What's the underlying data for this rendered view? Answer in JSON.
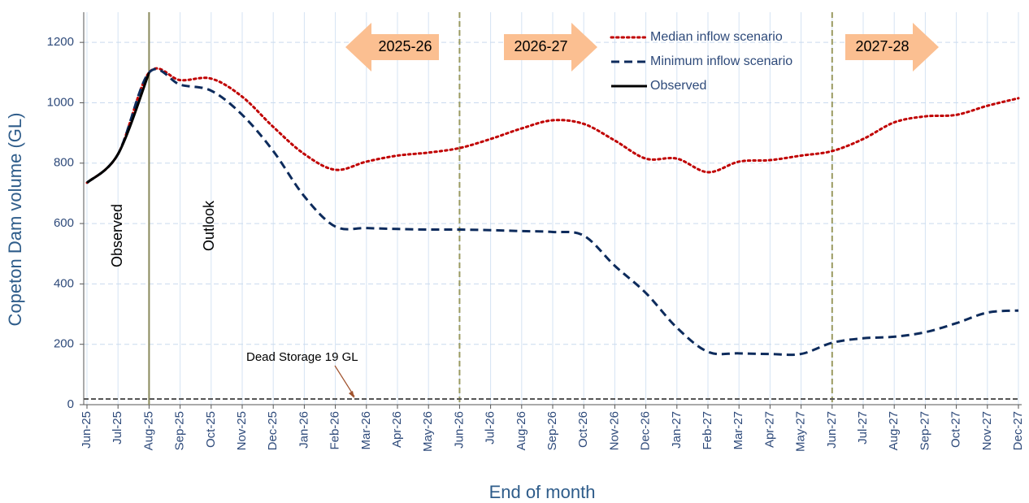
{
  "chart_data": {
    "type": "line",
    "xlabel": "End of month",
    "ylabel": "Copeton Dam volume (GL)",
    "categories": [
      "Jun-25",
      "Jul-25",
      "Aug-25",
      "Sep-25",
      "Oct-25",
      "Nov-25",
      "Dec-25",
      "Jan-26",
      "Feb-26",
      "Mar-26",
      "Apr-26",
      "May-26",
      "Jun-26",
      "Jul-26",
      "Aug-26",
      "Sep-26",
      "Oct-26",
      "Nov-26",
      "Dec-26",
      "Jan-27",
      "Feb-27",
      "Mar-27",
      "Apr-27",
      "May-27",
      "Jun-27",
      "Jul-27",
      "Aug-27",
      "Sep-27",
      "Oct-27",
      "Nov-27",
      "Dec-27"
    ],
    "series": [
      {
        "name": "Median inflow scenario",
        "color": "#c00000",
        "style": "dotted",
        "values": [
          735,
          830,
          1100,
          1075,
          1080,
          1020,
          920,
          830,
          778,
          805,
          825,
          835,
          850,
          880,
          915,
          942,
          930,
          875,
          815,
          815,
          770,
          805,
          810,
          825,
          840,
          880,
          935,
          955,
          960,
          990,
          1015
        ]
      },
      {
        "name": "Minimum inflow scenario",
        "color": "#0d2b5c",
        "style": "dashed",
        "values": [
          735,
          830,
          1100,
          1060,
          1040,
          960,
          840,
          690,
          590,
          585,
          582,
          580,
          580,
          578,
          575,
          572,
          560,
          460,
          370,
          255,
          175,
          170,
          168,
          168,
          205,
          220,
          225,
          240,
          270,
          305,
          312
        ]
      },
      {
        "name": "Observed",
        "color": "#000000",
        "style": "solid",
        "values": [
          735,
          830,
          1100,
          null,
          null,
          null,
          null,
          null,
          null,
          null,
          null,
          null,
          null,
          null,
          null,
          null,
          null,
          null,
          null,
          null,
          null,
          null,
          null,
          null,
          null,
          null,
          null,
          null,
          null,
          null,
          null
        ]
      }
    ],
    "ylim": [
      0,
      1300
    ],
    "yticks": [
      0,
      200,
      400,
      600,
      800,
      1000,
      1200
    ],
    "grid": true,
    "reference_lines": [
      {
        "category": "Aug-25",
        "style": "solid"
      },
      {
        "category": "Jun-26",
        "style": "dashed"
      },
      {
        "category": "Jun-27",
        "style": "dashed"
      }
    ],
    "dead_storage": {
      "text": "Dead Storage 19 GL",
      "value": 19
    },
    "annotations": [
      "Observed",
      "Outlook"
    ],
    "period_arrows": [
      {
        "text": "2025-26",
        "direction": "left"
      },
      {
        "text": "2026-27",
        "direction": "right"
      },
      {
        "text": "2027-28",
        "direction": "right"
      }
    ]
  }
}
